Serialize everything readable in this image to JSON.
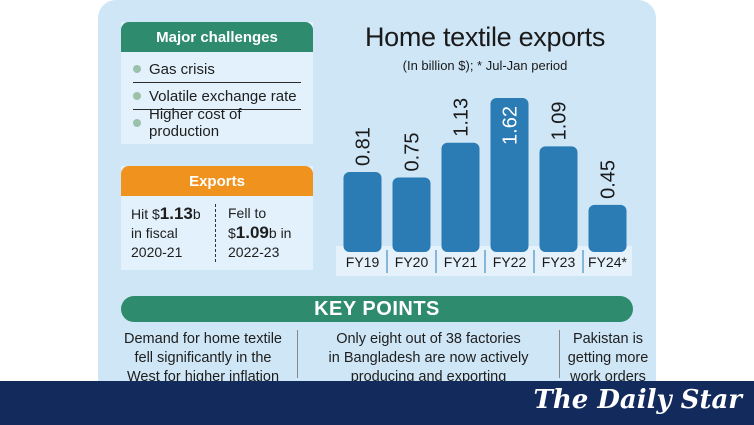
{
  "challenges": {
    "title": "Major challenges",
    "items": [
      "Gas crisis",
      "Volatile exchange rate",
      "Higher cost of production"
    ]
  },
  "exports": {
    "title": "Exports",
    "left": {
      "pre": "Hit $",
      "value": "1.13",
      "post_line1": "b",
      "line2": "in fiscal",
      "line3": "2020-21"
    },
    "right": {
      "line1": "Fell to",
      "pre": "$",
      "value": "1.09",
      "post": "b in",
      "line3": "2022-23"
    }
  },
  "chart_data": {
    "type": "bar",
    "title": "Home textile exports",
    "subtitle": "(In billion $); * Jul-Jan period",
    "categories": [
      "FY19",
      "FY20",
      "FY21",
      "FY22",
      "FY23",
      "FY24*"
    ],
    "values": [
      0.81,
      0.75,
      1.13,
      1.62,
      1.09,
      0.45
    ],
    "value_labels": [
      "0.81",
      "0.75",
      "1.13",
      "1.62",
      "1.09",
      "0.45"
    ],
    "bar_color": "#2b7bb4",
    "label_inside_bar": [
      false,
      false,
      false,
      true,
      false,
      false
    ]
  },
  "key_points": {
    "title": "KEY POINTS",
    "items": [
      {
        "line1": "Demand for home textile",
        "line2": "fell significantly in the",
        "line3": "West for higher inflation"
      },
      {
        "line1": "Only eight out of 38 factories",
        "line2": "in Bangladesh are now actively",
        "line3": "producing and exporting"
      },
      {
        "line1": "Pakistan is",
        "line2": "getting more",
        "line3": "work orders"
      }
    ]
  },
  "footer": {
    "brand": "The Daily Star"
  },
  "colors": {
    "panel": "#cfe6f6",
    "green": "#2e8b6e",
    "orange": "#f0921e",
    "navy": "#132a5c"
  }
}
